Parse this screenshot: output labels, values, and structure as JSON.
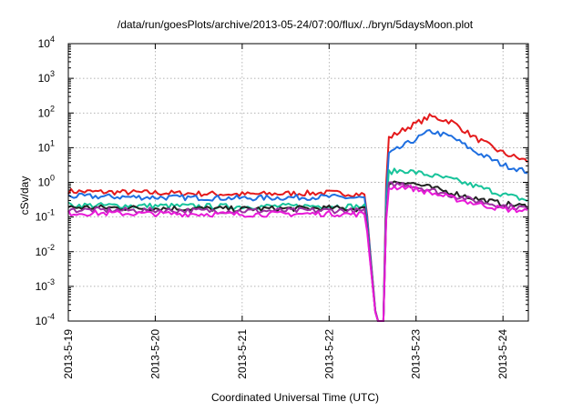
{
  "chart_data": {
    "type": "line",
    "title": "/data/run/goesPlots/archive/2013-05-24/07:00/flux/../bryn/5daysMoon.plot",
    "xlabel": "Coordinated Universal Time (UTC)",
    "ylabel": "cSv/day",
    "yscale": "log",
    "ylim": [
      0.0001,
      10000
    ],
    "xlim": [
      "2013-05-19T00:00",
      "2013-05-24T07:00"
    ],
    "grid": true,
    "legend": "none",
    "x_ticks": [
      "2013-5-19",
      "2013-5-20",
      "2013-5-21",
      "2013-5-22",
      "2013-5-23",
      "2013-5-24"
    ],
    "y_ticks": [
      {
        "value": 0.0001,
        "base": "10",
        "exp": "-4"
      },
      {
        "value": 0.001,
        "base": "10",
        "exp": "-3"
      },
      {
        "value": 0.01,
        "base": "10",
        "exp": "-2"
      },
      {
        "value": 0.1,
        "base": "10",
        "exp": "-1"
      },
      {
        "value": 1,
        "base": "10",
        "exp": "0"
      },
      {
        "value": 10,
        "base": "10",
        "exp": "1"
      },
      {
        "value": 100,
        "base": "10",
        "exp": "2"
      },
      {
        "value": 1000,
        "base": "10",
        "exp": "3"
      },
      {
        "value": 10000,
        "base": "10",
        "exp": "4"
      }
    ],
    "series": [
      {
        "color": "#e41a1c",
        "x": [
          "2013-05-19T00:00",
          "2013-05-20T00:00",
          "2013-05-21T00:00",
          "2013-05-22T00:00",
          "2013-05-22T10:00",
          "2013-05-22T13:00",
          "2013-05-22T15:00",
          "2013-05-22T16:00",
          "2013-05-22T21:00",
          "2013-05-23T04:00",
          "2013-05-23T10:00",
          "2013-05-23T16:00",
          "2013-05-24T00:00",
          "2013-05-24T07:00"
        ],
        "y": [
          0.55,
          0.5,
          0.45,
          0.5,
          0.45,
          0.0001,
          0.0001,
          18,
          35,
          80,
          55,
          20,
          7,
          4
        ]
      },
      {
        "color": "#1f6fe0",
        "x": [
          "2013-05-19T00:00",
          "2013-05-20T00:00",
          "2013-05-21T00:00",
          "2013-05-22T00:00",
          "2013-05-22T10:00",
          "2013-05-22T13:00",
          "2013-05-22T15:00",
          "2013-05-22T16:00",
          "2013-05-22T21:00",
          "2013-05-23T04:00",
          "2013-05-23T10:00",
          "2013-05-23T16:00",
          "2013-05-24T00:00",
          "2013-05-24T07:00"
        ],
        "y": [
          0.4,
          0.37,
          0.35,
          0.38,
          0.35,
          0.0001,
          0.0001,
          6,
          12,
          30,
          20,
          8,
          3.2,
          2
        ]
      },
      {
        "color": "#17c39a",
        "x": [
          "2013-05-19T00:00",
          "2013-05-20T00:00",
          "2013-05-21T00:00",
          "2013-05-22T00:00",
          "2013-05-22T10:00",
          "2013-05-22T13:00",
          "2013-05-22T15:00",
          "2013-05-22T16:00",
          "2013-05-22T21:00",
          "2013-05-23T04:00",
          "2013-05-23T10:00",
          "2013-05-23T16:00",
          "2013-05-24T00:00",
          "2013-05-24T07:00"
        ],
        "y": [
          0.22,
          0.21,
          0.2,
          0.21,
          0.2,
          0.0001,
          0.0001,
          2,
          2.2,
          1.6,
          1.2,
          0.8,
          0.45,
          0.3
        ]
      },
      {
        "color": "#222222",
        "x": [
          "2013-05-19T00:00",
          "2013-05-20T00:00",
          "2013-05-21T00:00",
          "2013-05-22T00:00",
          "2013-05-22T10:00",
          "2013-05-22T13:00",
          "2013-05-22T15:00",
          "2013-05-22T16:00",
          "2013-05-22T21:00",
          "2013-05-23T04:00",
          "2013-05-23T10:00",
          "2013-05-23T16:00",
          "2013-05-24T00:00",
          "2013-05-24T07:00"
        ],
        "y": [
          0.19,
          0.18,
          0.17,
          0.18,
          0.17,
          0.0001,
          0.0001,
          1,
          1.05,
          0.7,
          0.5,
          0.35,
          0.24,
          0.2
        ]
      },
      {
        "color": "#9b30a0",
        "x": [
          "2013-05-19T00:00",
          "2013-05-20T00:00",
          "2013-05-21T00:00",
          "2013-05-22T00:00",
          "2013-05-22T10:00",
          "2013-05-22T13:00",
          "2013-05-22T15:00",
          "2013-05-22T16:00",
          "2013-05-22T21:00",
          "2013-05-23T04:00",
          "2013-05-23T10:00",
          "2013-05-23T16:00",
          "2013-05-24T00:00",
          "2013-05-24T07:00"
        ],
        "y": [
          0.16,
          0.155,
          0.15,
          0.155,
          0.15,
          0.0001,
          0.0001,
          0.85,
          0.9,
          0.6,
          0.42,
          0.3,
          0.21,
          0.18
        ]
      },
      {
        "color": "#e81ad8",
        "x": [
          "2013-05-19T00:00",
          "2013-05-20T00:00",
          "2013-05-21T00:00",
          "2013-05-22T00:00",
          "2013-05-22T10:00",
          "2013-05-22T13:00",
          "2013-05-22T15:00",
          "2013-05-22T16:00",
          "2013-05-22T21:00",
          "2013-05-23T04:00",
          "2013-05-23T10:00",
          "2013-05-23T16:00",
          "2013-05-24T00:00",
          "2013-05-24T07:00"
        ],
        "y": [
          0.13,
          0.125,
          0.12,
          0.125,
          0.12,
          0.0001,
          0.0001,
          0.7,
          0.75,
          0.5,
          0.35,
          0.25,
          0.17,
          0.15
        ]
      }
    ]
  }
}
